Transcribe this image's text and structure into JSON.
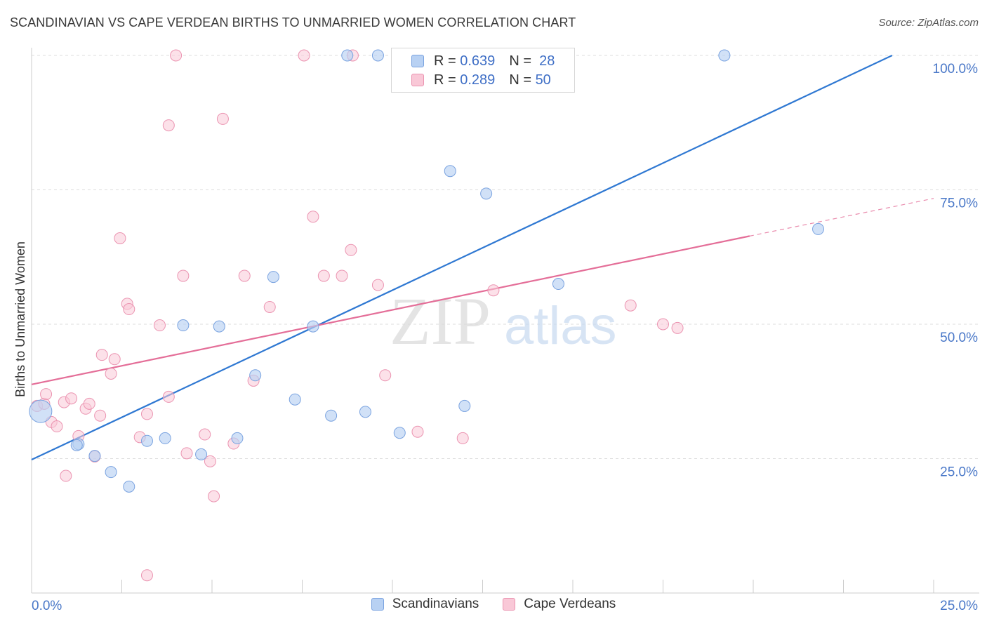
{
  "title": "SCANDINAVIAN VS CAPE VERDEAN BIRTHS TO UNMARRIED WOMEN CORRELATION CHART",
  "source": "Source: ZipAtlas.com",
  "watermark": {
    "zip": "ZIP",
    "atlas": "atlas"
  },
  "legend": {
    "rows": [
      {
        "r_label": "R =",
        "r_value": "0.639",
        "n_label": "N =",
        "n_value": "28"
      },
      {
        "r_label": "R =",
        "r_value": "0.289",
        "n_label": "N =",
        "n_value": "50"
      }
    ]
  },
  "bottom_legend": [
    "Scandinavians",
    "Cape Verdeans"
  ],
  "colors": {
    "blue_fill": "#b8d1f3",
    "blue_stroke": "#7aa3e0",
    "blue_line": "#2f78d2",
    "pink_fill": "#f9c8d7",
    "pink_stroke": "#eb94b1",
    "pink_line": "#e46e98",
    "axis_text": "#4a78c8",
    "grid": "#dddddd"
  },
  "chart_data": {
    "type": "scatter",
    "title": "SCANDINAVIAN VS CAPE VERDEAN BIRTHS TO UNMARRIED WOMEN CORRELATION CHART",
    "xlabel": "",
    "ylabel": "Births to Unmarried Women",
    "xlim": [
      0,
      25
    ],
    "ylim": [
      0,
      100
    ],
    "x_tick_labels": [
      "0.0%",
      "25.0%"
    ],
    "y_tick_labels": [
      "25.0%",
      "50.0%",
      "75.0%",
      "100.0%"
    ],
    "y_tick_values": [
      25,
      50,
      75,
      100
    ],
    "grid": true,
    "legend_position": "top-center",
    "series": [
      {
        "name": "Scandinavians",
        "r": 0.639,
        "n": 28,
        "trend": {
          "x0": 0,
          "y0": 24.8,
          "x1": 23.85,
          "y1": 100
        },
        "points": [
          [
            0.25,
            33.8,
            1
          ],
          [
            1.3,
            27.7,
            0
          ],
          [
            1.25,
            27.5,
            0
          ],
          [
            1.75,
            25.5,
            0
          ],
          [
            2.2,
            22.5,
            0
          ],
          [
            2.7,
            19.8,
            0
          ],
          [
            3.2,
            28.3,
            0
          ],
          [
            3.7,
            28.8,
            0
          ],
          [
            4.2,
            49.8,
            0
          ],
          [
            4.7,
            25.8,
            0
          ],
          [
            5.2,
            49.6,
            0
          ],
          [
            5.7,
            28.8,
            0
          ],
          [
            6.2,
            40.5,
            0
          ],
          [
            6.7,
            58.8,
            0
          ],
          [
            7.3,
            36.0,
            0
          ],
          [
            7.8,
            49.6,
            0
          ],
          [
            8.3,
            33.0,
            0
          ],
          [
            8.75,
            100,
            0
          ],
          [
            9.25,
            33.7,
            0
          ],
          [
            9.6,
            100,
            0
          ],
          [
            10.2,
            29.8,
            0
          ],
          [
            10.75,
            100,
            0
          ],
          [
            11.6,
            78.5,
            0
          ],
          [
            12.0,
            34.8,
            0
          ],
          [
            12.6,
            74.3,
            0
          ],
          [
            14.6,
            57.5,
            0
          ],
          [
            19.2,
            100,
            0
          ],
          [
            21.8,
            67.7,
            0
          ]
        ]
      },
      {
        "name": "Cape Verdeans",
        "r": 0.289,
        "n": 50,
        "trend": {
          "x0": 0,
          "y0": 38.8,
          "x1": 19.9,
          "y1": 66.4
        },
        "trend_dashed": {
          "x0": 19.9,
          "y0": 66.4,
          "x1": 25,
          "y1": 73.4
        },
        "points": [
          [
            0.15,
            34.8
          ],
          [
            0.35,
            35.2
          ],
          [
            0.4,
            37.0
          ],
          [
            0.55,
            31.8
          ],
          [
            0.7,
            31.0
          ],
          [
            0.9,
            35.5
          ],
          [
            0.95,
            21.8
          ],
          [
            1.1,
            36.2
          ],
          [
            1.3,
            29.2
          ],
          [
            1.5,
            34.3
          ],
          [
            1.6,
            35.2
          ],
          [
            1.75,
            25.4
          ],
          [
            1.9,
            33.0
          ],
          [
            1.95,
            44.3
          ],
          [
            2.2,
            40.8
          ],
          [
            2.3,
            43.5
          ],
          [
            2.45,
            66.0
          ],
          [
            2.65,
            53.8
          ],
          [
            2.7,
            52.8
          ],
          [
            3.0,
            29.0
          ],
          [
            3.2,
            33.3
          ],
          [
            3.2,
            3.3
          ],
          [
            3.55,
            49.8
          ],
          [
            3.8,
            87.0
          ],
          [
            3.8,
            36.5
          ],
          [
            4.0,
            100
          ],
          [
            4.2,
            59.0
          ],
          [
            4.3,
            26.0
          ],
          [
            4.8,
            29.5
          ],
          [
            4.95,
            24.5
          ],
          [
            5.05,
            18.0
          ],
          [
            5.3,
            88.2
          ],
          [
            5.6,
            27.8
          ],
          [
            5.9,
            59.0
          ],
          [
            6.15,
            39.5
          ],
          [
            6.6,
            53.2
          ],
          [
            7.55,
            100
          ],
          [
            7.8,
            70.0
          ],
          [
            8.1,
            59.0
          ],
          [
            8.6,
            59.0
          ],
          [
            8.85,
            63.8
          ],
          [
            8.9,
            100
          ],
          [
            9.6,
            57.3
          ],
          [
            9.8,
            40.5
          ],
          [
            10.7,
            30.0
          ],
          [
            11.95,
            28.8
          ],
          [
            12.8,
            56.3
          ],
          [
            16.6,
            53.5
          ],
          [
            17.5,
            50.0
          ],
          [
            17.9,
            49.3
          ]
        ]
      }
    ]
  }
}
